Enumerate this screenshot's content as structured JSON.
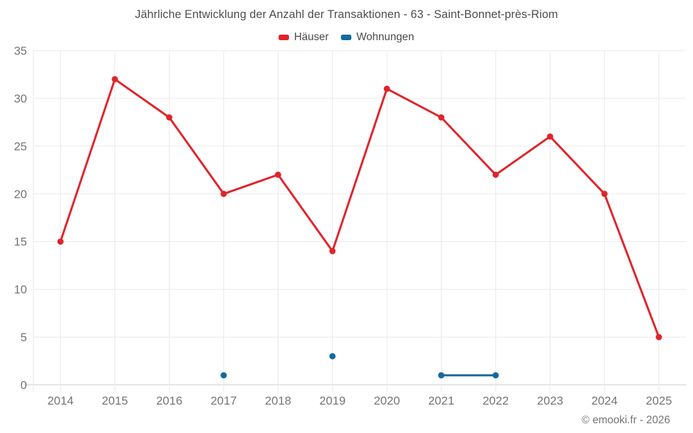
{
  "attribution": "© emooki.fr - 2026",
  "colors": {
    "haeuser_red": "#e0242b",
    "wohnungen_blue": "#16699e",
    "grid_line": "#e9e9e9",
    "axis_line": "#cfcfcf",
    "axis_label": "#757575",
    "title_text": "#4d4d4d"
  },
  "chart_data": {
    "type": "line",
    "title": "Jährliche Entwicklung der Anzahl der Transaktionen - 63 - Saint-Bonnet-près-Riom",
    "categories": [
      "2014",
      "2015",
      "2016",
      "2017",
      "2018",
      "2019",
      "2020",
      "2021",
      "2022",
      "2023",
      "2024",
      "2025"
    ],
    "series": [
      {
        "name": "Häuser",
        "color": "#e0242b",
        "values": [
          15,
          32,
          28,
          20,
          22,
          14,
          31,
          28,
          22,
          26,
          20,
          5
        ]
      },
      {
        "name": "Wohnungen",
        "color": "#16699e",
        "values": [
          null,
          null,
          null,
          1,
          null,
          3,
          null,
          1,
          1,
          null,
          null,
          null
        ]
      }
    ],
    "xlabel": "",
    "ylabel": "",
    "ylim": [
      0,
      35
    ],
    "yticks": [
      0,
      5,
      10,
      15,
      20,
      25,
      30,
      35
    ],
    "grid": true,
    "legend_position": "top"
  }
}
